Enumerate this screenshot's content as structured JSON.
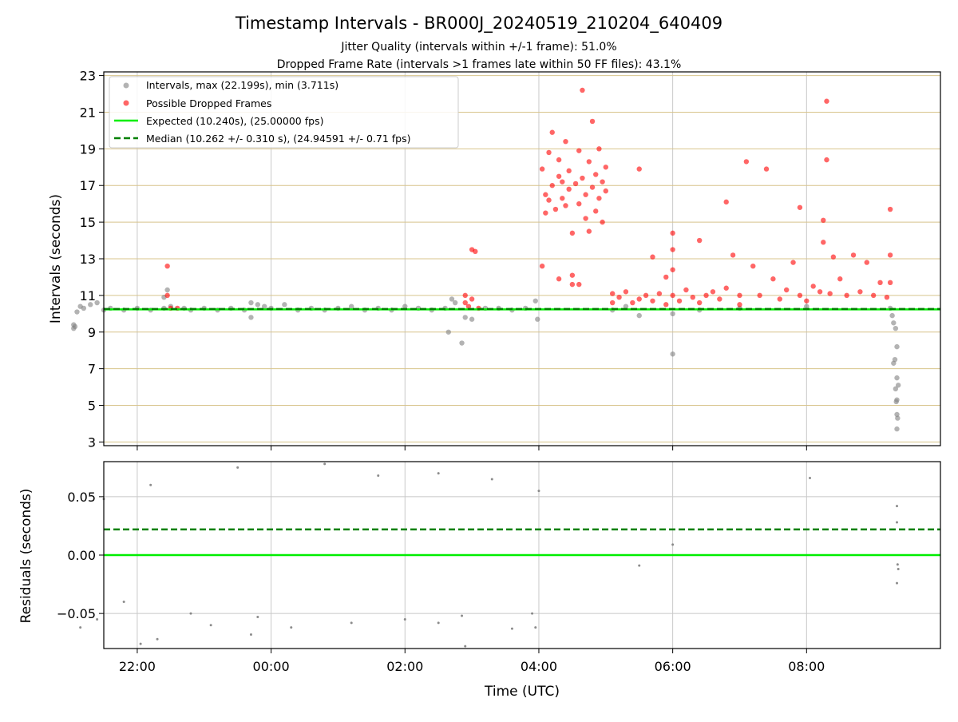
{
  "figure": {
    "title": "Timestamp Intervals - BR000J_20240519_210204_640409",
    "subtitle_1": "Jitter Quality (intervals within +/-1 frame): 51.0%",
    "subtitle_2": "Dropped Frame Rate (intervals >1 frames late within 50 FF files): 43.1%",
    "xlabel": "Time (UTC)"
  },
  "colors": {
    "intervals": "#808080",
    "dropped": "#ff0000",
    "expected": "#00ee00",
    "median": "#008000",
    "hgrid_top": "#d8c48c",
    "grid": "#c8c8c8"
  },
  "chart_data": [
    {
      "type": "scatter",
      "id": "intervals",
      "ylabel": "Intervals (seconds)",
      "xlabel": "",
      "x_unit": "hours since 00:00 UTC (negative = previous day)",
      "xlim": [
        -2.5,
        10.0
      ],
      "ylim": [
        2.8,
        23.2
      ],
      "xticks": [
        -2,
        0,
        2,
        4,
        6,
        8
      ],
      "xtick_labels": [
        "22:00",
        "00:00",
        "02:00",
        "04:00",
        "06:00",
        "08:00"
      ],
      "yticks": [
        3,
        5,
        7,
        9,
        11,
        13,
        15,
        17,
        19,
        21,
        23
      ],
      "ytick_labels": [
        "23",
        "21",
        "19",
        "17",
        "15",
        "13",
        "11",
        "9",
        "7",
        "5",
        "3"
      ],
      "grid": true,
      "legend_position": "top-left",
      "legend": [
        "Intervals, max (22.199s), min (3.711s)",
        "Possible Dropped Frames",
        "Expected (10.240s), (25.00000 fps)",
        "Median (10.262 +/- 0.310 s), (24.94591 +/- 0.71 fps)"
      ],
      "hlines": [
        {
          "name": "Expected",
          "y": 10.24,
          "style": "solid"
        },
        {
          "name": "Median",
          "y": 10.262,
          "style": "dashed"
        }
      ],
      "series": [
        {
          "name": "Intervals, max (22.199s), min (3.711s)",
          "points": [
            [
              -2.95,
              9.2
            ],
            [
              -2.95,
              9.4
            ],
            [
              -2.93,
              9.3
            ],
            [
              -2.9,
              10.1
            ],
            [
              -2.85,
              10.4
            ],
            [
              -2.8,
              10.3
            ],
            [
              -2.7,
              10.5
            ],
            [
              -2.6,
              10.6
            ],
            [
              -2.5,
              10.2
            ],
            [
              -2.4,
              10.3
            ],
            [
              -2.2,
              10.2
            ],
            [
              -2.0,
              10.3
            ],
            [
              -1.8,
              10.2
            ],
            [
              -1.6,
              10.3
            ],
            [
              -1.5,
              10.4
            ],
            [
              -1.55,
              11.3
            ],
            [
              -1.6,
              10.9
            ],
            [
              -1.3,
              10.3
            ],
            [
              -1.2,
              10.2
            ],
            [
              -1.0,
              10.3
            ],
            [
              -0.8,
              10.2
            ],
            [
              -0.6,
              10.3
            ],
            [
              -0.4,
              10.2
            ],
            [
              -0.3,
              10.6
            ],
            [
              -0.2,
              10.5
            ],
            [
              -0.1,
              10.4
            ],
            [
              -0.3,
              9.8
            ],
            [
              0.0,
              10.3
            ],
            [
              0.2,
              10.5
            ],
            [
              0.4,
              10.2
            ],
            [
              0.6,
              10.3
            ],
            [
              0.8,
              10.2
            ],
            [
              1.0,
              10.3
            ],
            [
              1.2,
              10.4
            ],
            [
              1.4,
              10.2
            ],
            [
              1.6,
              10.3
            ],
            [
              1.8,
              10.2
            ],
            [
              2.0,
              10.4
            ],
            [
              2.2,
              10.3
            ],
            [
              2.4,
              10.2
            ],
            [
              2.6,
              10.3
            ],
            [
              2.65,
              9.0
            ],
            [
              2.85,
              8.4
            ],
            [
              2.9,
              9.8
            ],
            [
              2.7,
              10.8
            ],
            [
              2.75,
              10.6
            ],
            [
              3.0,
              9.7
            ],
            [
              3.2,
              10.3
            ],
            [
              3.4,
              10.3
            ],
            [
              3.6,
              10.2
            ],
            [
              3.8,
              10.3
            ],
            [
              3.95,
              10.7
            ],
            [
              3.98,
              9.7
            ],
            [
              5.1,
              10.2
            ],
            [
              5.3,
              10.4
            ],
            [
              5.5,
              9.9
            ],
            [
              6.0,
              7.8
            ],
            [
              6.0,
              10.0
            ],
            [
              6.4,
              10.2
            ],
            [
              7.0,
              10.3
            ],
            [
              8.0,
              10.4
            ],
            [
              9.25,
              10.3
            ],
            [
              9.28,
              9.9
            ],
            [
              9.3,
              9.5
            ],
            [
              9.33,
              9.2
            ],
            [
              9.35,
              8.2
            ],
            [
              9.32,
              7.5
            ],
            [
              9.3,
              7.3
            ],
            [
              9.35,
              6.5
            ],
            [
              9.37,
              6.1
            ],
            [
              9.33,
              5.9
            ],
            [
              9.35,
              5.3
            ],
            [
              9.34,
              5.2
            ],
            [
              9.35,
              4.5
            ],
            [
              9.36,
              4.3
            ],
            [
              9.35,
              3.711
            ]
          ]
        },
        {
          "name": "Possible Dropped Frames",
          "points": [
            [
              -1.55,
              12.6
            ],
            [
              -1.55,
              11.0
            ],
            [
              -1.5,
              10.3
            ],
            [
              -1.4,
              10.3
            ],
            [
              2.9,
              10.6
            ],
            [
              2.9,
              11.0
            ],
            [
              2.95,
              10.4
            ],
            [
              3.0,
              10.8
            ],
            [
              3.0,
              13.5
            ],
            [
              3.05,
              13.4
            ],
            [
              3.1,
              10.3
            ],
            [
              4.05,
              12.6
            ],
            [
              4.05,
              17.9
            ],
            [
              4.1,
              16.5
            ],
            [
              4.1,
              15.5
            ],
            [
              4.15,
              16.2
            ],
            [
              4.15,
              18.8
            ],
            [
              4.2,
              17.0
            ],
            [
              4.2,
              19.9
            ],
            [
              4.25,
              15.7
            ],
            [
              4.3,
              17.5
            ],
            [
              4.3,
              18.4
            ],
            [
              4.35,
              16.3
            ],
            [
              4.35,
              17.2
            ],
            [
              4.4,
              19.4
            ],
            [
              4.4,
              15.9
            ],
            [
              4.45,
              17.8
            ],
            [
              4.45,
              16.8
            ],
            [
              4.5,
              14.4
            ],
            [
              4.5,
              11.6
            ],
            [
              4.5,
              12.1
            ],
            [
              4.55,
              17.1
            ],
            [
              4.6,
              18.9
            ],
            [
              4.6,
              16.0
            ],
            [
              4.65,
              22.199
            ],
            [
              4.65,
              17.4
            ],
            [
              4.7,
              16.5
            ],
            [
              4.7,
              15.2
            ],
            [
              4.75,
              18.3
            ],
            [
              4.75,
              14.5
            ],
            [
              4.8,
              16.9
            ],
            [
              4.8,
              20.5
            ],
            [
              4.85,
              17.6
            ],
            [
              4.85,
              15.6
            ],
            [
              4.9,
              19.0
            ],
            [
              4.9,
              16.3
            ],
            [
              4.95,
              17.2
            ],
            [
              4.95,
              15.0
            ],
            [
              5.0,
              18.0
            ],
            [
              5.0,
              16.7
            ],
            [
              4.3,
              11.9
            ],
            [
              4.6,
              11.6
            ],
            [
              5.1,
              10.6
            ],
            [
              5.1,
              11.1
            ],
            [
              5.2,
              10.9
            ],
            [
              5.3,
              11.2
            ],
            [
              5.4,
              10.6
            ],
            [
              5.5,
              10.8
            ],
            [
              5.5,
              17.9
            ],
            [
              5.6,
              11.0
            ],
            [
              5.7,
              10.7
            ],
            [
              5.7,
              13.1
            ],
            [
              5.8,
              11.1
            ],
            [
              5.9,
              10.5
            ],
            [
              5.9,
              12.0
            ],
            [
              6.0,
              11.0
            ],
            [
              6.0,
              14.4
            ],
            [
              6.0,
              13.5
            ],
            [
              6.0,
              12.4
            ],
            [
              6.1,
              10.7
            ],
            [
              6.2,
              11.3
            ],
            [
              6.3,
              10.9
            ],
            [
              6.4,
              14.0
            ],
            [
              6.4,
              10.6
            ],
            [
              6.5,
              11.0
            ],
            [
              6.6,
              11.2
            ],
            [
              6.7,
              10.8
            ],
            [
              6.8,
              11.4
            ],
            [
              6.8,
              16.1
            ],
            [
              6.9,
              13.2
            ],
            [
              7.0,
              11.0
            ],
            [
              7.0,
              10.5
            ],
            [
              7.1,
              18.3
            ],
            [
              7.2,
              12.6
            ],
            [
              7.3,
              11.0
            ],
            [
              7.4,
              17.9
            ],
            [
              7.5,
              11.9
            ],
            [
              7.6,
              10.8
            ],
            [
              7.7,
              11.3
            ],
            [
              7.8,
              12.8
            ],
            [
              7.9,
              11.0
            ],
            [
              7.9,
              15.8
            ],
            [
              8.0,
              10.7
            ],
            [
              8.1,
              11.5
            ],
            [
              8.2,
              11.2
            ],
            [
              8.25,
              15.1
            ],
            [
              8.25,
              13.9
            ],
            [
              8.3,
              21.6
            ],
            [
              8.3,
              18.4
            ],
            [
              8.35,
              11.1
            ],
            [
              8.4,
              13.1
            ],
            [
              8.5,
              11.9
            ],
            [
              8.6,
              11.0
            ],
            [
              8.7,
              13.2
            ],
            [
              8.8,
              11.2
            ],
            [
              8.9,
              12.8
            ],
            [
              9.0,
              11.0
            ],
            [
              9.1,
              11.7
            ],
            [
              9.2,
              10.9
            ],
            [
              9.25,
              15.7
            ],
            [
              9.25,
              13.2
            ],
            [
              9.25,
              11.7
            ]
          ]
        }
      ]
    },
    {
      "type": "scatter",
      "id": "residuals",
      "ylabel": "Residuals (seconds)",
      "xlabel": "Time (UTC)",
      "xlim": [
        -2.5,
        10.0
      ],
      "ylim": [
        -0.08,
        0.08
      ],
      "xticks": [
        -2,
        0,
        2,
        4,
        6,
        8
      ],
      "xtick_labels": [
        "22:00",
        "00:00",
        "02:00",
        "04:00",
        "06:00",
        "08:00"
      ],
      "yticks": [
        0.05,
        0.0,
        -0.05
      ],
      "ytick_labels": [
        "0.05",
        "0.00",
        "−0.05"
      ],
      "grid": true,
      "hlines": [
        {
          "name": "Expected",
          "y": 0.0,
          "style": "solid"
        },
        {
          "name": "Median",
          "y": 0.022,
          "style": "dashed"
        }
      ],
      "series": [
        {
          "name": "Residuals",
          "points": [
            [
              -2.85,
              -0.062
            ],
            [
              -2.6,
              -0.055
            ],
            [
              -2.5,
              0.048
            ],
            [
              -2.2,
              -0.04
            ],
            [
              -1.95,
              -0.076
            ],
            [
              -1.7,
              -0.072
            ],
            [
              -1.8,
              0.06
            ],
            [
              -1.2,
              -0.05
            ],
            [
              -0.9,
              -0.06
            ],
            [
              -0.5,
              0.075
            ],
            [
              -0.3,
              -0.068
            ],
            [
              -0.2,
              -0.053
            ],
            [
              0.3,
              -0.062
            ],
            [
              0.8,
              0.078
            ],
            [
              1.2,
              -0.058
            ],
            [
              1.6,
              0.068
            ],
            [
              2.0,
              -0.055
            ],
            [
              2.5,
              -0.058
            ],
            [
              2.5,
              0.07
            ],
            [
              2.85,
              -0.052
            ],
            [
              2.9,
              -0.078
            ],
            [
              3.3,
              0.065
            ],
            [
              3.6,
              -0.063
            ],
            [
              3.9,
              -0.05
            ],
            [
              3.95,
              -0.062
            ],
            [
              4.0,
              0.055
            ],
            [
              5.5,
              -0.009
            ],
            [
              6.0,
              0.009
            ],
            [
              8.05,
              0.066
            ],
            [
              9.35,
              0.042
            ],
            [
              9.35,
              0.028
            ],
            [
              9.36,
              -0.008
            ],
            [
              9.37,
              -0.012
            ],
            [
              9.35,
              -0.024
            ]
          ]
        }
      ]
    }
  ]
}
